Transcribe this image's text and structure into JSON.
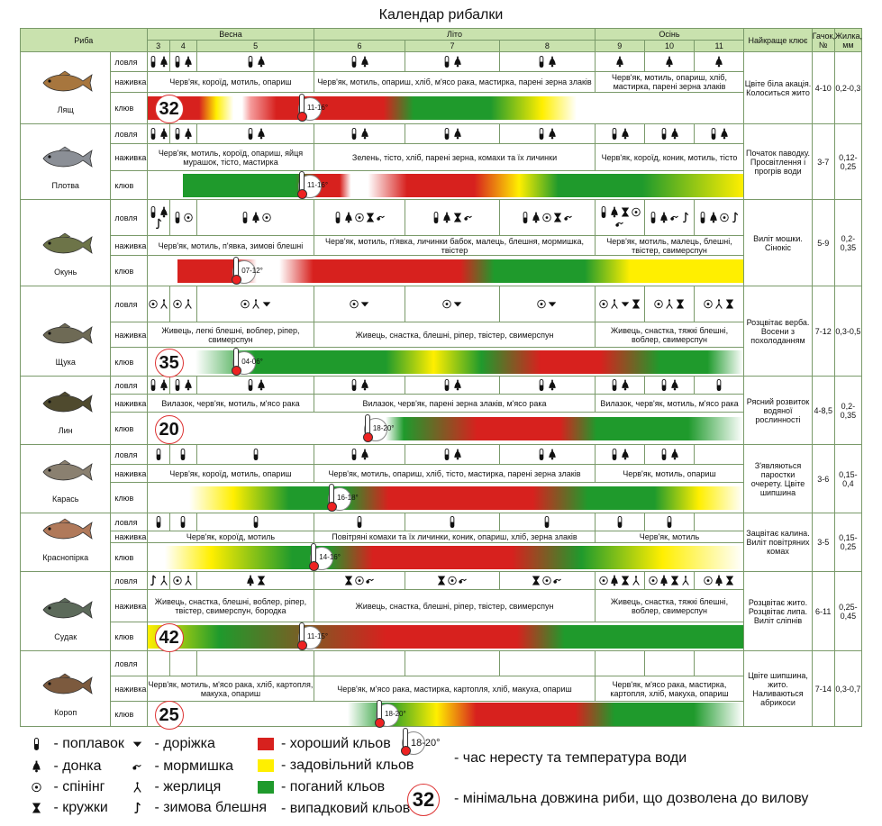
{
  "title": "Календар рибалки",
  "header": {
    "fish": "Риба",
    "seasons": [
      "Весна",
      "Літо",
      "Осінь"
    ],
    "months": [
      "3",
      "4",
      "5",
      "6",
      "7",
      "8",
      "9",
      "10",
      "11"
    ],
    "best_key": "Найкраще клює",
    "hook": "Гачок, №",
    "line": "Жилка, мм"
  },
  "row_labels": {
    "catch": "ловля",
    "bait": "наживка",
    "bite": "клюв"
  },
  "colors": {
    "good": "#d7211e",
    "ok": "#ffef00",
    "bad": "#1f9a2c",
    "header": "#c9e2ae"
  },
  "icon_names": {
    "F": "float-icon",
    "D": "bottom-tackle-icon",
    "S": "spinning-icon",
    "K": "mug-icon",
    "T": "trolling-icon",
    "M": "jig-icon",
    "Z": "pike-rig-icon",
    "W": "winter-lure-icon"
  },
  "fish": [
    {
      "name": "Лящ",
      "catch": [
        [
          "F",
          "D"
        ],
        [
          "F",
          "D"
        ],
        [
          "F",
          "D"
        ],
        [
          "F",
          "D"
        ],
        [
          "F",
          "D"
        ],
        [
          "F",
          "D"
        ],
        [
          "D"
        ],
        [
          "D"
        ],
        [
          "D"
        ]
      ],
      "bait": [
        "Черв'як, короїд, мотиль, опариш",
        "Черв'як, мотиль, опариш, хліб, м'ясо рака, мастирка, парені зерна злаків",
        "Черв'як, мотиль, опариш, хліб, мастирка, парені зерна злаків"
      ],
      "bite_min": "32",
      "spawn": "11-16°",
      "best": "Цвіте біла акація. Колоситься жито",
      "hook": "4-10",
      "line": "0,2-0,3"
    },
    {
      "name": "Плотва",
      "catch": [
        [
          "F",
          "D"
        ],
        [
          "F",
          "D"
        ],
        [
          "F",
          "D"
        ],
        [
          "F",
          "D"
        ],
        [
          "F",
          "D"
        ],
        [
          "F",
          "D"
        ],
        [
          "F",
          "D"
        ],
        [
          "F",
          "D"
        ],
        [
          "F",
          "D"
        ]
      ],
      "bait": [
        "Черв'як, мотиль, короїд, опариш, яйця мурашок, тісто, мастирка",
        "Зелень, тісто, хліб, парені зерна, комахи та їх личинки",
        "Черв'як, короїд, коник, мотиль, тісто"
      ],
      "bite_min": "",
      "spawn": "11-16°",
      "best": "Початок паводку. Просвітлення і прогрів води",
      "hook": "3-7",
      "line": "0,12-0,25"
    },
    {
      "name": "Окунь",
      "catch": [
        [
          "F",
          "D",
          "W"
        ],
        [
          "F",
          "S"
        ],
        [
          "F",
          "D",
          "S"
        ],
        [
          "F",
          "D",
          "S",
          "K",
          "M"
        ],
        [
          "F",
          "D",
          "K",
          "M"
        ],
        [
          "F",
          "D",
          "S",
          "K",
          "M"
        ],
        [
          "F",
          "D",
          "K",
          "S",
          "M"
        ],
        [
          "F",
          "D",
          "M",
          "W"
        ],
        [
          "F",
          "D",
          "S",
          "W"
        ]
      ],
      "bait": [
        "Черв'як, мотиль, п'явка, зимові блешні",
        "Черв'як, мотиль, п'явка, личинки бабок, малець, блешня, мормишка, твістер",
        "Черв'як, мотиль, малець, блешні, твістер, свимерспун"
      ],
      "bite_min": "",
      "spawn": "07-12°",
      "best": "Виліт мошки. Сінокіс",
      "hook": "5-9",
      "line": "0,2-0,35"
    },
    {
      "name": "Щука",
      "catch": [
        [
          "S",
          "Z"
        ],
        [
          "S",
          "Z"
        ],
        [
          "S",
          "Z",
          "T"
        ],
        [
          "S",
          "T"
        ],
        [
          "S",
          "T"
        ],
        [
          "S",
          "T"
        ],
        [
          "S",
          "Z",
          "T",
          "K"
        ],
        [
          "S",
          "Z",
          "K"
        ],
        [
          "S",
          "Z",
          "K"
        ]
      ],
      "bait": [
        "Живець, легкі блешні, воблер, ріпер, свимерспун",
        "Живець, снастка, блешні, ріпер, твістер, свимерспун",
        "Живець, снастка, тяжкі блешні, воблер, свимерспун"
      ],
      "bite_min": "35",
      "spawn": "04-06°",
      "best": "Розцвітає верба. Восени з похолоданням",
      "hook": "7-12",
      "line": "0,3-0,5"
    },
    {
      "name": "Лин",
      "catch": [
        [
          "F",
          "D"
        ],
        [
          "F",
          "D"
        ],
        [
          "F",
          "D"
        ],
        [
          "F",
          "D"
        ],
        [
          "F",
          "D"
        ],
        [
          "F",
          "D"
        ],
        [
          "F",
          "D"
        ],
        [
          "F",
          "D"
        ],
        [
          "F"
        ]
      ],
      "bait": [
        "Вилазок, черв'як, мотиль, м'ясо рака",
        "Вилазок, черв'як, парені зерна злаків, м'ясо рака",
        "Вилазок, черв'як, мотиль, м'ясо рака"
      ],
      "bite_min": "20",
      "spawn": "18-20°",
      "best": "Рясний розвиток водяної рослинності",
      "hook": "4-8,5",
      "line": "0,2-0,35"
    },
    {
      "name": "Карась",
      "catch": [
        [
          "F"
        ],
        [
          "F"
        ],
        [
          "F"
        ],
        [
          "F",
          "D"
        ],
        [
          "F",
          "D"
        ],
        [
          "F",
          "D"
        ],
        [
          "F",
          "D"
        ],
        [
          "F",
          "D"
        ],
        []
      ],
      "bait": [
        "Черв'як, короїд, мотиль, опариш",
        "Черв'як, мотиль, опариш, хліб, тісто, мастирка, парені зерна злаків",
        "Черв'як, мотиль, опариш"
      ],
      "bite_min": "",
      "spawn": "16-18°",
      "best": "З'являються паростки очерету. Цвіте шипшина",
      "hook": "3-6",
      "line": "0,15-0,4"
    },
    {
      "name": "Краснопірка",
      "catch": [
        [
          "F"
        ],
        [
          "F"
        ],
        [
          "F"
        ],
        [
          "F"
        ],
        [
          "F"
        ],
        [
          "F"
        ],
        [
          "F"
        ],
        [
          "F"
        ],
        []
      ],
      "bait": [
        "Черв'як, короїд, мотиль",
        "Повітряні комахи та їх личинки, коник, опариш, хліб, зерна злаків",
        "Черв'як, мотиль"
      ],
      "bite_min": "",
      "spawn": "14-16°",
      "best": "Зацвітає калина. Виліт повітряних комах",
      "hook": "3-5",
      "line": "0,15-0,25"
    },
    {
      "name": "Судак",
      "catch": [
        [
          "W",
          "Z"
        ],
        [
          "S",
          "Z"
        ],
        [
          "D",
          "K"
        ],
        [
          "K",
          "S",
          "M"
        ],
        [
          "K",
          "S",
          "M"
        ],
        [
          "K",
          "S",
          "M"
        ],
        [
          "S",
          "D",
          "K",
          "Z"
        ],
        [
          "S",
          "D",
          "K",
          "Z"
        ],
        [
          "S",
          "D",
          "K"
        ]
      ],
      "bait": [
        "Живець, снастка, блешні, воблер, ріпер, твістер, свимерспун, бородка",
        "Живець, снастка, блешні, ріпер, твістер, свимерспун",
        "Живець, снастка, тяжкі блешні, воблер, свимерспун"
      ],
      "bite_min": "42",
      "spawn": "11-15°",
      "best": "Розцвітає жито. Розцвітає липа. Виліт сліпнів",
      "hook": "6-11",
      "line": "0,25-0,45"
    },
    {
      "name": "Короп",
      "catch": [
        [],
        [],
        [],
        [],
        [],
        [],
        [],
        [],
        []
      ],
      "bait": [
        "Черв'як, мотиль, м'ясо рака, хліб, картопля, макуха, опариш",
        "Черв'як, м'ясо рака, мастирка, картопля, хліб, макуха, опариш",
        "Черв'як, м'ясо рака, мастирка, картопля, хліб, макуха, опариш"
      ],
      "bite_min": "25",
      "spawn": "18-20°",
      "best": "Цвіте шипшина, жито. Наливаються абрикоси",
      "hook": "7-14",
      "line": "0,3-0,7"
    }
  ],
  "legend": {
    "tackle": [
      {
        "icon": "F",
        "label": "- поплавок"
      },
      {
        "icon": "D",
        "label": "- донка"
      },
      {
        "icon": "S",
        "label": "- спінінг"
      },
      {
        "icon": "K",
        "label": "- кружки"
      },
      {
        "icon": "T",
        "label": "- доріжка"
      },
      {
        "icon": "M",
        "label": "- мормишка"
      },
      {
        "icon": "Z",
        "label": "- жерлиця"
      },
      {
        "icon": "W",
        "label": "- зимова блешня"
      }
    ],
    "bite": [
      {
        "color": "#d7211e",
        "label": "- хороший кльов"
      },
      {
        "color": "#ffef00",
        "label": "- задовільний кльов"
      },
      {
        "color": "#1f9a2c",
        "label": "- поганий кльов"
      },
      {
        "color": "none",
        "label": "- випадковий кльов"
      }
    ],
    "spawn_sample": "18-20°",
    "spawn_label": "- час нересту та температура води",
    "min_sample": "32",
    "min_label": "- мінімальна довжина риби, що дозволена до вилову"
  }
}
